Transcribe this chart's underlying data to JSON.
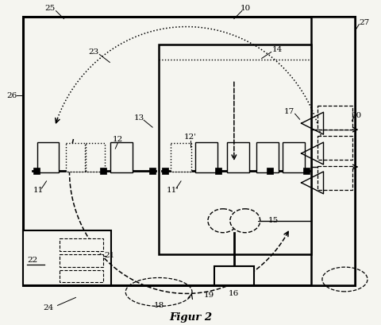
{
  "title": "Figur 2",
  "bg_color": "#f5f5f0",
  "lw_main": 2.0,
  "lw_thin": 1.0,
  "lw_label": 0.7
}
